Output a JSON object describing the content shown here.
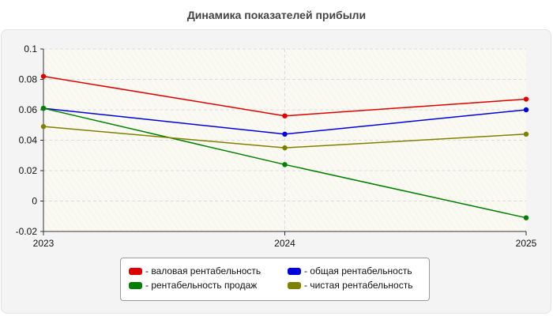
{
  "chart_data": {
    "type": "line",
    "title": "Динамика показателей прибыли",
    "x": [
      "2023",
      "2024",
      "2025"
    ],
    "y_ticks": [
      "0.1",
      "0.08",
      "0.06",
      "0.04",
      "0.02",
      "0",
      "-0.02"
    ],
    "ylim": [
      -0.02,
      0.1
    ],
    "grid": true,
    "legend_position": "bottom",
    "series": [
      {
        "name": "- валовая рентабельность",
        "color": "#e00000",
        "values": [
          0.082,
          0.056,
          0.067
        ]
      },
      {
        "name": "- общая рентабельность",
        "color": "#0000dd",
        "values": [
          0.061,
          0.044,
          0.06
        ]
      },
      {
        "name": "- рентабельность продаж",
        "color": "#008000",
        "values": [
          0.061,
          0.024,
          -0.011
        ]
      },
      {
        "name": "- чистая рентабельность",
        "color": "#808000",
        "values": [
          0.049,
          0.035,
          0.044
        ]
      }
    ]
  }
}
